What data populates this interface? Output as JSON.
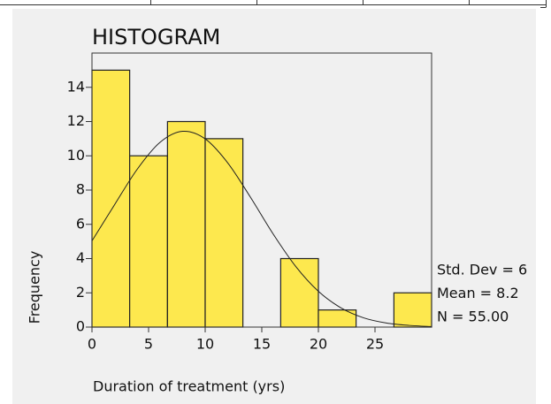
{
  "chart_data": {
    "type": "histogram",
    "title": "HISTOGRAM",
    "x_label": "Duration of treatment (yrs)",
    "y_label": "Frequency",
    "bins": [
      0,
      3.33,
      6.67,
      10,
      13.33,
      16.67,
      20,
      23.33,
      26.67,
      30
    ],
    "counts": [
      15,
      10,
      12,
      11,
      0,
      4,
      1,
      0,
      2
    ],
    "color": "#fde84e",
    "curve": {
      "x": [
        0,
        2,
        4,
        6,
        8,
        10,
        12,
        14,
        16,
        18,
        20,
        22,
        24,
        26,
        28,
        30
      ],
      "y": [
        5.03,
        7.15,
        9.22,
        10.78,
        11.43,
        10.99,
        9.58,
        7.58,
        5.44,
        3.54,
        2.09,
        1.12,
        0.54,
        0.24,
        0.1,
        0.03
      ]
    },
    "stats": [
      "Std. Dev = 6",
      "Mean = 8.2",
      "N = 55.00"
    ],
    "xlim": [
      0,
      30
    ],
    "xticks": [
      0,
      5,
      10,
      15,
      20,
      25
    ],
    "ylim": [
      0,
      16
    ],
    "yticks": [
      0,
      2,
      4,
      6,
      8,
      10,
      12,
      14
    ],
    "grid": false
  }
}
